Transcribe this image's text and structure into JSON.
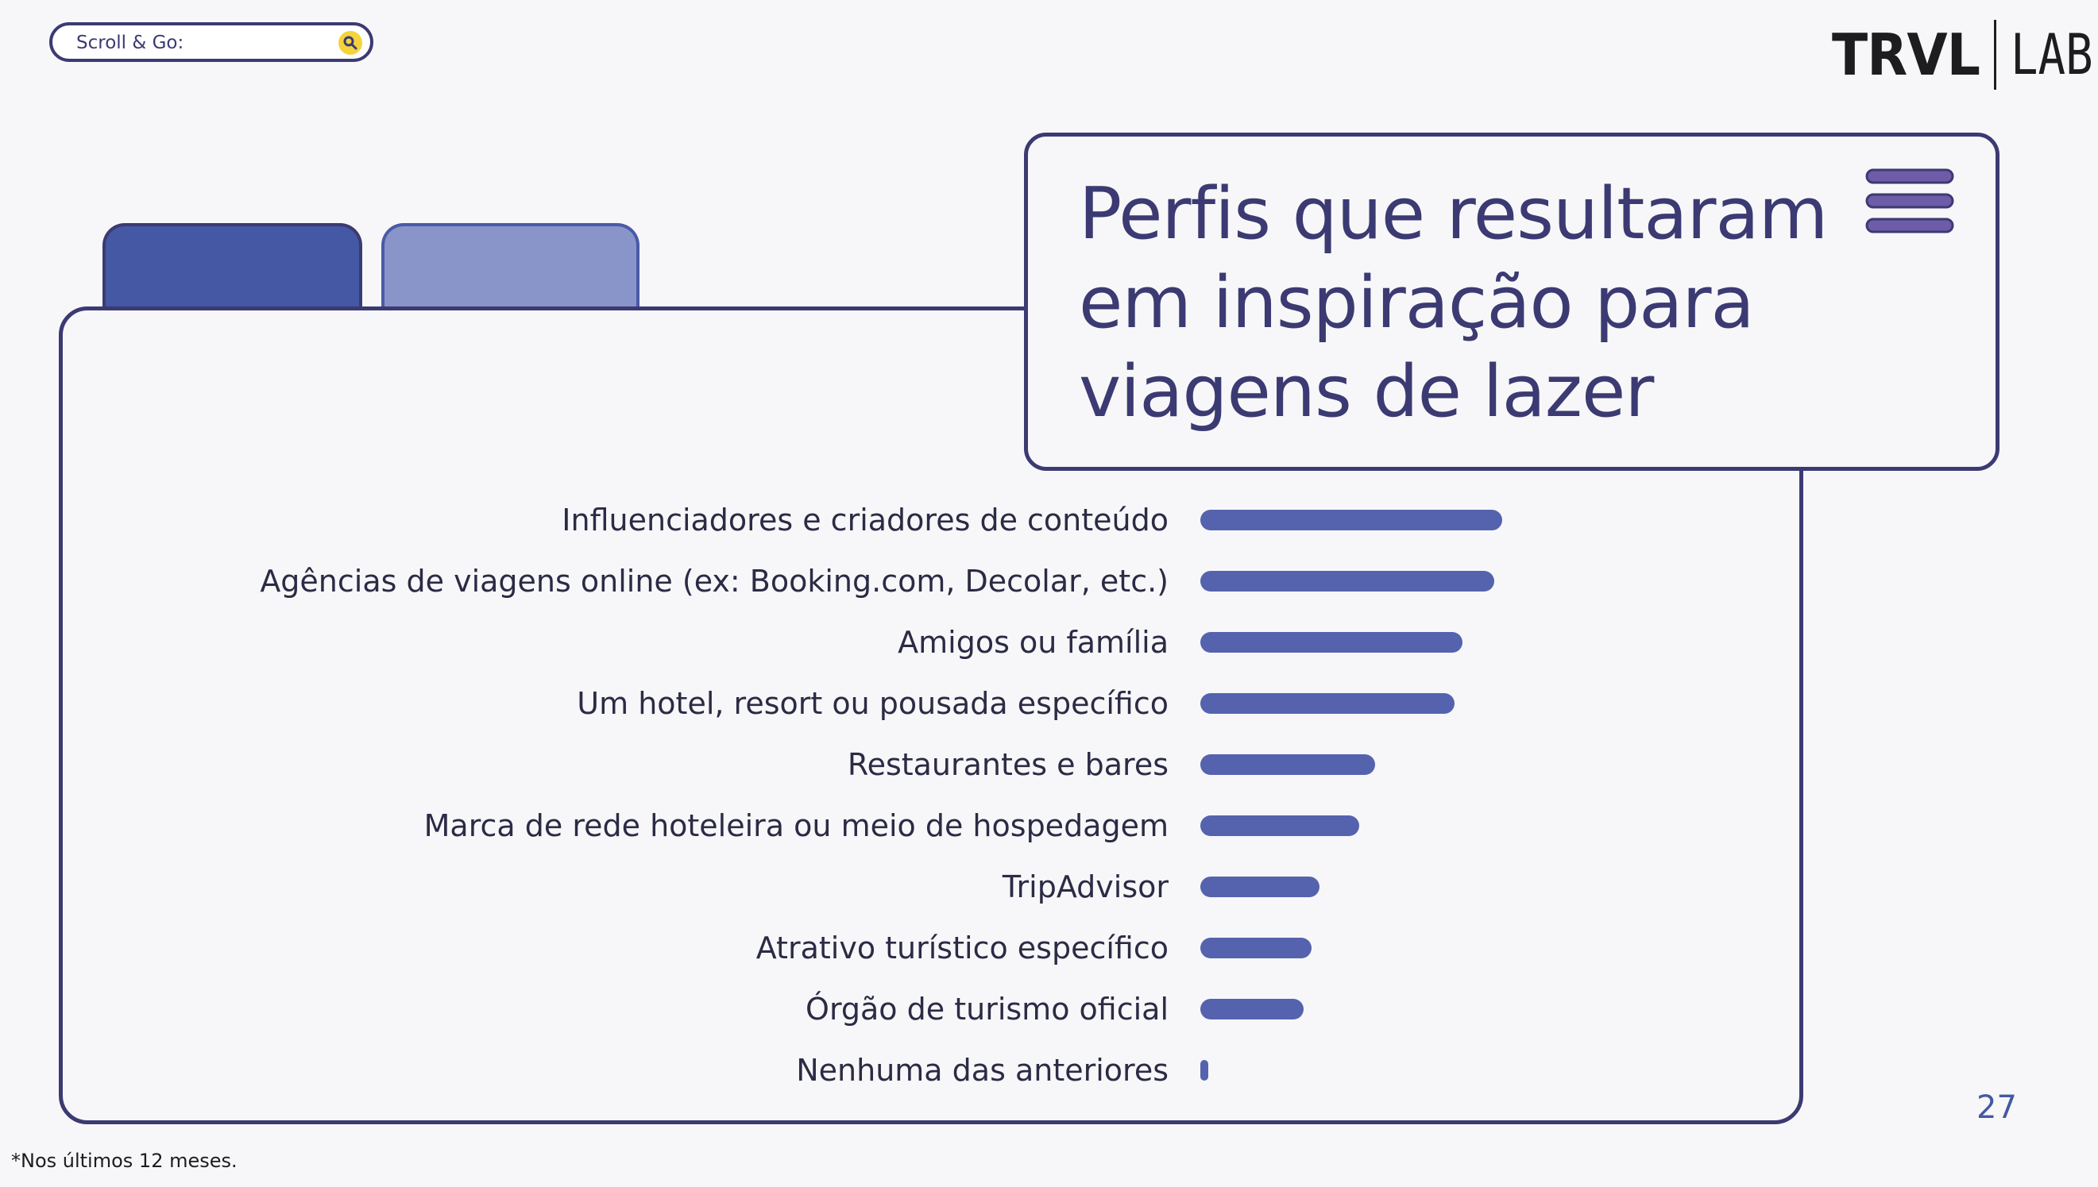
{
  "search": {
    "label": "Scroll & Go:"
  },
  "logo": {
    "brand": "TRVL",
    "suffix": "LAB"
  },
  "title": "Perfis que resultaram em inspiração para viagens de lazer",
  "page_number": "27",
  "footnote": "*Nos últimos 12 meses.",
  "colors": {
    "bar": "#5563ae",
    "outline": "#3c3a72",
    "tab_active": "#4458a4",
    "tab_inactive": "#8995c9",
    "menu": "#6e5ca8"
  },
  "icons": [
    "search-icon",
    "menu-icon"
  ],
  "chart_data": {
    "type": "bar",
    "orientation": "horizontal",
    "categories": [
      "Influenciadores e criadores de conteúdo",
      "Agências de viagens online (ex: Booking.com, Decolar, etc.)",
      "Amigos ou família",
      "Um hotel, resort ou pousada específico",
      "Restaurantes e bares",
      "Marca de rede hoteleira ou meio de hospedagem",
      "TripAdvisor",
      "Atrativo turístico específico",
      "Órgão de turismo oficial",
      "Nenhuma das anteriores"
    ],
    "values": [
      38,
      37,
      33,
      32,
      22,
      20,
      15,
      14,
      13,
      1
    ],
    "xlim": [
      0,
      100
    ],
    "grid": false,
    "legend": false
  }
}
